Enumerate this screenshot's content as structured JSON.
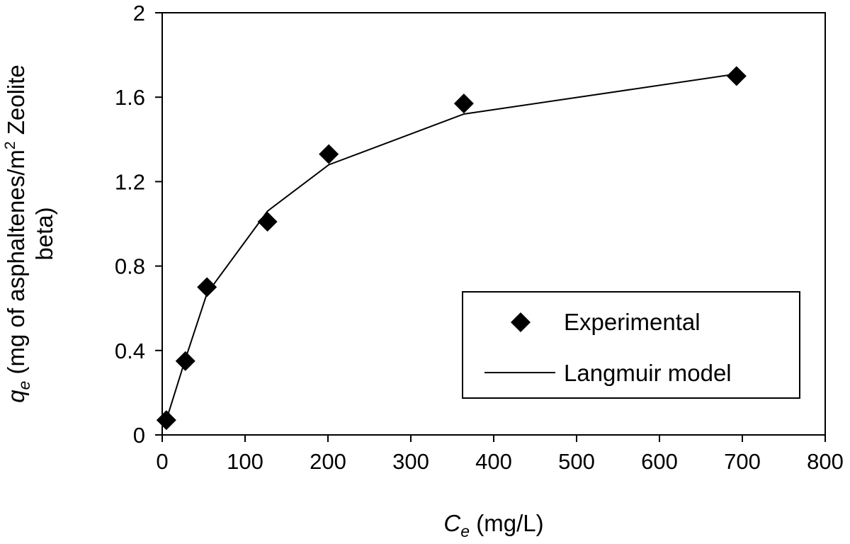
{
  "chart_data": {
    "type": "scatter",
    "title": "",
    "xlabel": {
      "symbol": "C",
      "subscript": "e",
      "unit": " (mg/L)"
    },
    "ylabel": {
      "symbol": "q",
      "subscript": "e",
      "line1_pre": " (mg of asphaltenes/m",
      "line1_sup": "2",
      "line1_post": " Zeolite",
      "line2": "beta)"
    },
    "xlim": [
      0,
      800
    ],
    "ylim": [
      0,
      2
    ],
    "xticks": [
      0,
      100,
      200,
      300,
      400,
      500,
      600,
      700,
      800
    ],
    "xtick_labels": [
      "0",
      "100",
      "200",
      "300",
      "400",
      "500",
      "600",
      "700",
      "800"
    ],
    "yticks": [
      0,
      0.4,
      0.8,
      1.2,
      1.6,
      2
    ],
    "ytick_labels": [
      "0",
      "0.4",
      "0.8",
      "1.2",
      "1.6",
      "2"
    ],
    "grid": false,
    "legend_position": "bottom-right",
    "series": [
      {
        "name": "Experimental",
        "kind": "markers",
        "marker": "diamond",
        "color": "#000000",
        "x": [
          5,
          28,
          54,
          127,
          201,
          364,
          693
        ],
        "y": [
          0.07,
          0.35,
          0.7,
          1.01,
          1.33,
          1.57,
          1.7
        ]
      },
      {
        "name": "Langmuir model",
        "kind": "line",
        "color": "#000000",
        "x": [
          5,
          28,
          54,
          127,
          201,
          364,
          693
        ],
        "y": [
          0.07,
          0.36,
          0.67,
          1.06,
          1.28,
          1.52,
          1.71
        ]
      }
    ]
  }
}
